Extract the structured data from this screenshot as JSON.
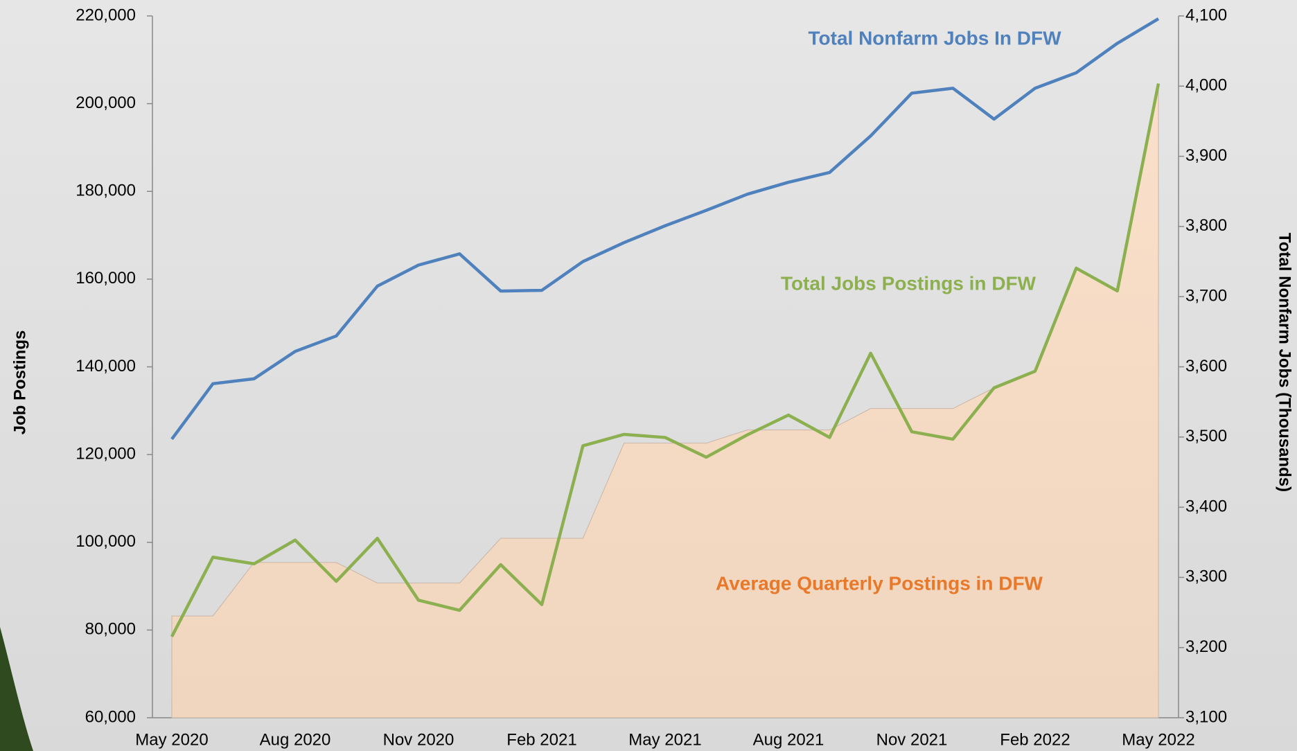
{
  "chart_data": {
    "type": "line",
    "y_label": "Job Postings",
    "y2_label": "Total Nonfarm Jobs (Thousands)",
    "categories": [
      "May 2020",
      null,
      null,
      "Aug 2020",
      null,
      null,
      "Nov 2020",
      null,
      null,
      "Feb 2021",
      null,
      null,
      "May 2021",
      null,
      null,
      "Aug 2021",
      null,
      null,
      "Nov 2021",
      null,
      null,
      "Feb 2022",
      null,
      null,
      "May 2022"
    ],
    "ylim": [
      60000,
      220000
    ],
    "yticks": [
      {
        "value": 60000,
        "label": "60,000"
      },
      {
        "value": 80000,
        "label": "80,000"
      },
      {
        "value": 100000,
        "label": "100,000"
      },
      {
        "value": 120000,
        "label": "120,000"
      },
      {
        "value": 140000,
        "label": "140,000"
      },
      {
        "value": 160000,
        "label": "160,000"
      },
      {
        "value": 180000,
        "label": "180,000"
      },
      {
        "value": 200000,
        "label": "200,000"
      },
      {
        "value": 220000,
        "label": "220,000"
      }
    ],
    "y2lim": [
      3100,
      4100
    ],
    "y2ticks": [
      {
        "value": 3100,
        "label": "3,100"
      },
      {
        "value": 3200,
        "label": "3,200"
      },
      {
        "value": 3300,
        "label": "3,300"
      },
      {
        "value": 3400,
        "label": "3,400"
      },
      {
        "value": 3500,
        "label": "3,500"
      },
      {
        "value": 3600,
        "label": "3,600"
      },
      {
        "value": 3700,
        "label": "3,700"
      },
      {
        "value": 3800,
        "label": "3,800"
      },
      {
        "value": 3900,
        "label": "3,900"
      },
      {
        "value": 4000,
        "label": "4,000"
      },
      {
        "value": 4100,
        "label": "4,100"
      }
    ],
    "series": [
      {
        "name": "Average Quarterly Postings in DFW",
        "style": "area",
        "color": "#e8782a",
        "axis": "y",
        "values": [
          83200,
          83200,
          95400,
          95400,
          95400,
          90700,
          90700,
          90700,
          100900,
          100900,
          100900,
          122600,
          122600,
          122600,
          125600,
          125600,
          125600,
          130500,
          130500,
          130500,
          135200,
          139000,
          162500,
          157300,
          204600
        ]
      },
      {
        "name": "Total Nonfarm Jobs In DFW",
        "style": "line",
        "color": "#4f81bd",
        "axis": "y2",
        "values": [
          3497,
          3576,
          3583,
          3622,
          3644,
          3715,
          3745,
          3761,
          3708,
          3709,
          3750,
          3777,
          3801,
          3823,
          3846,
          3863,
          3877,
          3929,
          3990,
          3997,
          3953,
          3997,
          4019,
          4061,
          4096
        ]
      },
      {
        "name": "Total Jobs Postings in DFW",
        "style": "line",
        "color": "#8cb04f",
        "axis": "y",
        "values": [
          78500,
          96600,
          95100,
          100500,
          91100,
          100900,
          86800,
          84500,
          94900,
          85800,
          122000,
          124600,
          123900,
          119400,
          124500,
          129000,
          123900,
          143100,
          125200,
          123500,
          135200,
          139000,
          162500,
          157300,
          204600
        ]
      }
    ]
  }
}
